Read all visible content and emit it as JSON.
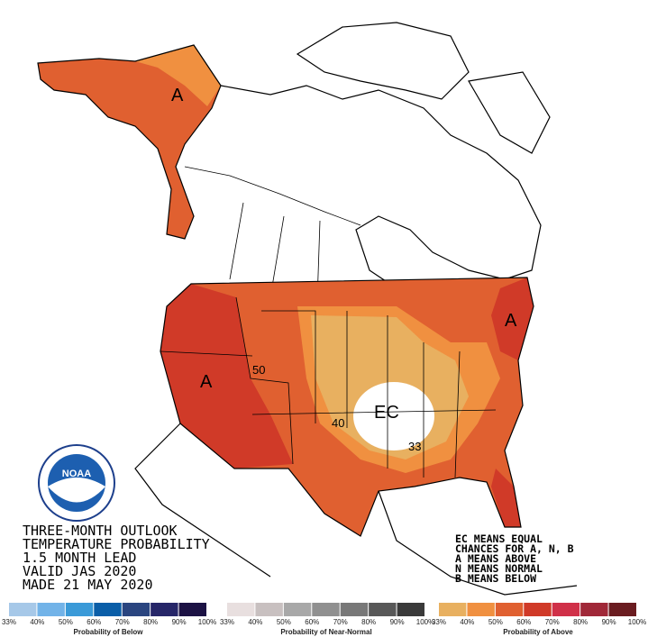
{
  "title_lines": [
    "THREE-MONTH OUTLOOK",
    "TEMPERATURE PROBABILITY",
    "1.5 MONTH LEAD",
    "VALID JAS 2020",
    "MADE 21 MAY 2020"
  ],
  "key_lines": [
    "EC MEANS EQUAL",
    "CHANCES FOR A, N, B",
    "A MEANS ABOVE",
    "N MEANS NORMAL",
    "B MEANS BELOW"
  ],
  "map_labels": [
    "A",
    "A",
    "A",
    "EC",
    "50",
    "40",
    "33"
  ],
  "logo": "NOAA",
  "scales": [
    {
      "title": "Probability of Below",
      "colors": [
        "#a6c8e8",
        "#72b3e8",
        "#3a9ad8",
        "#0a5ea8",
        "#2a4580",
        "#262668",
        "#1c1244"
      ],
      "ticks": [
        "33%",
        "40%",
        "50%",
        "60%",
        "70%",
        "80%",
        "90%",
        "100%"
      ]
    },
    {
      "title": "Probability of Near-Normal",
      "colors": [
        "#e8dfdf",
        "#c8c0c0",
        "#a8a8a8",
        "#909090",
        "#787878",
        "#585858",
        "#3a3a3a"
      ],
      "ticks": [
        "33%",
        "40%",
        "50%",
        "60%",
        "70%",
        "80%",
        "90%",
        "100%"
      ]
    },
    {
      "title": "Probability of Above",
      "colors": [
        "#e8b060",
        "#f09040",
        "#e06030",
        "#d03a28",
        "#d03048",
        "#a02838",
        "#6a1c20"
      ],
      "ticks": [
        "33%",
        "40%",
        "50%",
        "60%",
        "70%",
        "80%",
        "90%",
        "100%"
      ]
    }
  ]
}
